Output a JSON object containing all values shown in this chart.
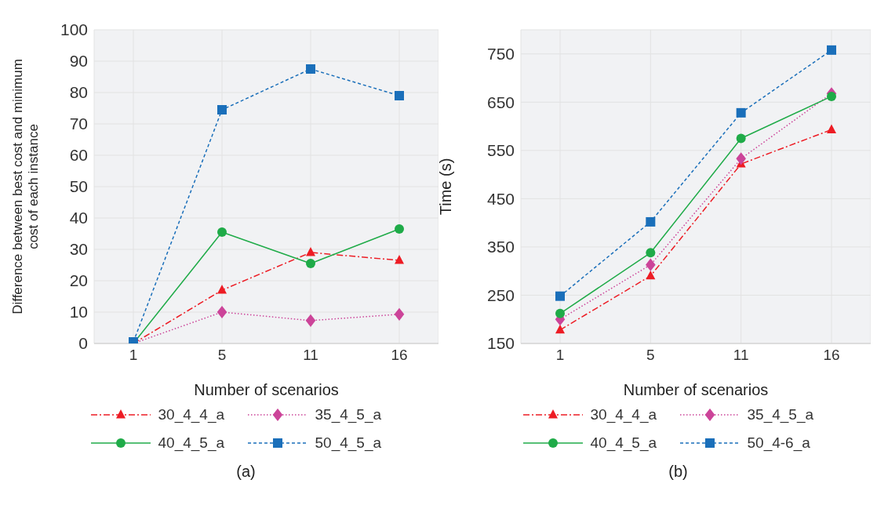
{
  "chart_data": [
    {
      "type": "line",
      "xlabel": "Number of scenarios",
      "ylabel": "Difference between best cost and minimum\ncost of each instance",
      "categories": [
        "1",
        "5",
        "11",
        "16"
      ],
      "ylim": [
        0,
        100
      ],
      "yticks": [
        0,
        10,
        20,
        30,
        40,
        50,
        60,
        70,
        80,
        90,
        100
      ],
      "grid": true,
      "legend": "bottom",
      "annotations": [
        "(a)"
      ],
      "series": [
        {
          "name": "30_4_4_a",
          "color": "#ed1c24",
          "marker": "triangle",
          "line_style": "dashdot",
          "values": [
            0,
            17,
            29,
            26.5
          ]
        },
        {
          "name": "35_4_5_a",
          "color": "#cc4499",
          "marker": "diamond",
          "line_style": "dotted",
          "values": [
            0,
            10,
            7.3,
            9.3
          ]
        },
        {
          "name": "40_4_5_a",
          "color": "#1fab48",
          "marker": "circle",
          "line_style": "solid",
          "values": [
            0,
            35.5,
            25.5,
            36.5
          ]
        },
        {
          "name": "50_4_5_a",
          "color": "#1a6fba",
          "marker": "square",
          "line_style": "dashed",
          "values": [
            0.5,
            74.5,
            87.5,
            79
          ]
        }
      ]
    },
    {
      "type": "line",
      "xlabel": "Number of scenarios",
      "ylabel": "Time (s)",
      "categories": [
        "1",
        "5",
        "11",
        "16"
      ],
      "ylim": [
        150,
        800
      ],
      "yticks": [
        150,
        250,
        350,
        450,
        550,
        650,
        750
      ],
      "grid": true,
      "legend": "bottom",
      "annotations": [
        "(b)"
      ],
      "series": [
        {
          "name": "30_4_4_a",
          "color": "#ed1c24",
          "marker": "triangle",
          "line_style": "dashdot",
          "values": [
            178,
            290,
            522,
            593
          ]
        },
        {
          "name": "35_4_5_a",
          "color": "#cc4499",
          "marker": "diamond",
          "line_style": "dotted",
          "values": [
            200,
            313,
            533,
            668
          ]
        },
        {
          "name": "40_4_5_a",
          "color": "#1fab48",
          "marker": "circle",
          "line_style": "solid",
          "values": [
            212,
            338,
            575,
            662
          ]
        },
        {
          "name": "50_4-6_a",
          "color": "#1a6fba",
          "marker": "square",
          "line_style": "dashed",
          "values": [
            248,
            402,
            628,
            758
          ]
        }
      ]
    }
  ]
}
